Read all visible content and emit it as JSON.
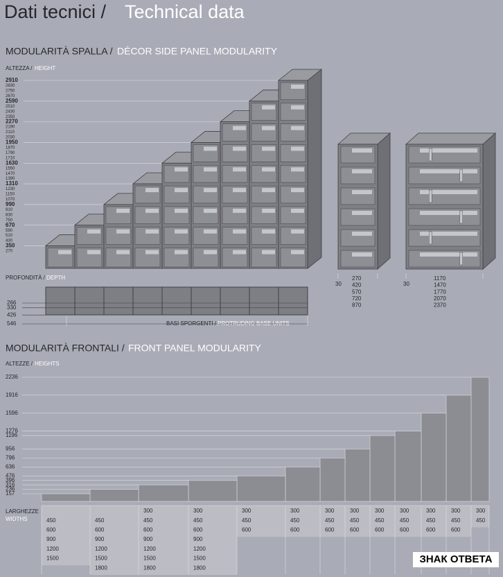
{
  "header": {
    "title_it": "Dati tecnici /",
    "title_en": "Technical data"
  },
  "side": {
    "heading_it": "MODULARITÀ SPALLA /",
    "heading_en": "DÉCOR SIDE PANEL MODULARITY",
    "height_label_it": "ALTEZZA /",
    "height_label_en": "HEIGHT",
    "heights": [
      2910,
      2830,
      2750,
      2670,
      2590,
      2510,
      2430,
      2350,
      2270,
      2190,
      2110,
      2030,
      1950,
      1870,
      1790,
      1710,
      1630,
      1550,
      1470,
      1390,
      1310,
      1230,
      1150,
      1070,
      990,
      910,
      830,
      750,
      670,
      590,
      510,
      430,
      350,
      270
    ],
    "depth_label_it": "PROFONDITÀ /",
    "depth_label_en": "DEPTH",
    "depths": [
      266,
      330,
      426,
      546
    ],
    "base_label_it": "BASI SPORGENTI /",
    "base_label_en": "PROTRUDING BASE UNITS",
    "narrow_unit": {
      "thickness": 30,
      "widths": [
        270,
        420,
        570,
        720,
        870
      ]
    },
    "wide_unit": {
      "thickness": 30,
      "widths": [
        1170,
        1470,
        1770,
        2070,
        2370
      ]
    }
  },
  "front": {
    "heading_it": "MODULARITÀ FRONTALI /",
    "heading_en": "FRONT PANEL MODULARITY",
    "height_label_it": "ALTEZZE /",
    "height_label_en": "HEIGHTS",
    "heights": [
      2236,
      1916,
      1596,
      1276,
      1196,
      956,
      796,
      636,
      476,
      396,
      316,
      236,
      157
    ],
    "width_label_it": "LARGHEZZE",
    "width_label_en": "WIDTHS",
    "columns": [
      [
        450,
        600,
        900,
        1200,
        1500
      ],
      [
        450,
        600,
        900,
        1200,
        1500,
        1800
      ],
      [
        300,
        450,
        600,
        900,
        1200,
        1500,
        1800
      ],
      [
        300,
        450,
        600,
        900,
        1200,
        1500,
        1800
      ],
      [
        300,
        450,
        600
      ],
      [
        300,
        450,
        600
      ],
      [
        300,
        450,
        600
      ],
      [
        300,
        450,
        600
      ],
      [
        300,
        450,
        600
      ],
      [
        300,
        450,
        600
      ],
      [
        300,
        450,
        600
      ],
      [
        300,
        450,
        600
      ],
      [
        300,
        450
      ]
    ]
  },
  "watermark": "ЗНАК ОТВЕТА"
}
